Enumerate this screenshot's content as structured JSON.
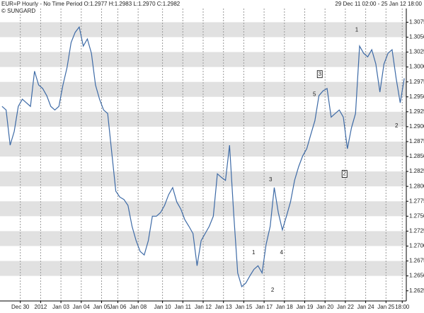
{
  "chart_data": {
    "type": "line",
    "title": "EUR=P Hourly - No Time Period O:1.2977 H:1.2983 L:1.2970 C:1.2982",
    "subtitle": "© SUNGARD",
    "date_range": "29 Dec 11 02:00 - 25 Jan 12 18:00",
    "series": [
      {
        "name": "EUR=P",
        "color": "#3d6aa6",
        "values": [
          1.2934,
          1.2928,
          1.2869,
          1.2892,
          1.2934,
          1.2946,
          1.294,
          1.2934,
          1.2993,
          1.297,
          1.2964,
          1.2952,
          1.2934,
          1.2928,
          1.2934,
          1.297,
          1.2999,
          1.3041,
          1.3058,
          1.3067,
          1.3035,
          1.3047,
          1.3023,
          1.297,
          1.2946,
          1.2928,
          1.2922,
          1.2857,
          1.2792,
          1.2782,
          1.2778,
          1.2768,
          1.2733,
          1.2709,
          1.2691,
          1.2685,
          1.2709,
          1.275,
          1.275,
          1.2756,
          1.2768,
          1.2786,
          1.2798,
          1.2774,
          1.2762,
          1.2744,
          1.2733,
          1.2721,
          1.2667,
          1.2709,
          1.2721,
          1.2733,
          1.275,
          1.2821,
          1.2815,
          1.281,
          1.2869,
          1.2756,
          1.2655,
          1.2632,
          1.2638,
          1.265,
          1.2661,
          1.2667,
          1.2655,
          1.2703,
          1.2733,
          1.2798,
          1.2756,
          1.2727,
          1.275,
          1.2774,
          1.281,
          1.2833,
          1.2851,
          1.2863,
          1.2887,
          1.291,
          1.2952,
          1.296,
          1.2964,
          1.2916,
          1.2922,
          1.2928,
          1.2916,
          1.2863,
          1.2898,
          1.2922,
          1.3035,
          1.3023,
          1.3017,
          1.3029,
          1.3005,
          1.2958,
          1.3005,
          1.3023,
          1.3029,
          1.2981,
          1.294,
          1.2981
        ]
      }
    ],
    "xlim": [
      0,
      100
    ],
    "xticks": [
      {
        "value": 5,
        "label": "Dec 30"
      },
      {
        "value": 10,
        "label": "2012"
      },
      {
        "value": 15,
        "label": "Jan 03"
      },
      {
        "value": 20,
        "label": "Jan 04"
      },
      {
        "value": 25,
        "label": "Jan 05"
      },
      {
        "value": 29,
        "label": "Jan 06"
      },
      {
        "value": 34,
        "label": "Jan 08"
      },
      {
        "value": 40,
        "label": "Jan 10"
      },
      {
        "value": 45,
        "label": "Jan 11"
      },
      {
        "value": 50,
        "label": "Jan 12"
      },
      {
        "value": 55,
        "label": "Jan 13"
      },
      {
        "value": 60,
        "label": "Jan 15"
      },
      {
        "value": 65,
        "label": "Jan 17"
      },
      {
        "value": 70,
        "label": "Jan 18"
      },
      {
        "value": 75,
        "label": "Jan 19"
      },
      {
        "value": 80,
        "label": "Jan 20"
      },
      {
        "value": 85,
        "label": "Jan 22"
      },
      {
        "value": 90,
        "label": "Jan 24"
      },
      {
        "value": 95,
        "label": "Jan 25"
      },
      {
        "value": 99,
        "label": "18:00"
      }
    ],
    "ylim": [
      1.2608,
      1.3098
    ],
    "yticks": [
      1.2625,
      {
        "value": 1.265,
        "label": "1.2650"
      },
      1.2675,
      {
        "value": 1.27,
        "label": "1.2700"
      },
      1.2725,
      {
        "value": 1.275,
        "label": "1.2750"
      },
      1.2775,
      {
        "value": 1.28,
        "label": "1.2800"
      },
      1.2825,
      {
        "value": 1.285,
        "label": "1.2850"
      },
      1.2875,
      {
        "value": 1.29,
        "label": "1.2900"
      },
      1.2925,
      {
        "value": 1.295,
        "label": "1.2950"
      },
      1.2975,
      {
        "value": 1.3,
        "label": "1.3000"
      },
      1.3025,
      {
        "value": 1.305,
        "label": "1.3050"
      },
      1.3075
    ],
    "grid": true,
    "annotations": [
      {
        "text": "1",
        "x": 62.4,
        "y": 1.2689,
        "boxed": false
      },
      {
        "text": "2",
        "x": 67.1,
        "y": 1.2626,
        "boxed": false
      },
      {
        "text": "3",
        "x": 66.6,
        "y": 1.2811,
        "boxed": false
      },
      {
        "text": "4",
        "x": 69.3,
        "y": 1.2689,
        "boxed": false
      },
      {
        "text": "5",
        "x": 77.4,
        "y": 1.2954,
        "boxed": false
      },
      {
        "text": "3",
        "x": 78.7,
        "y": 1.2988,
        "boxed": true
      },
      {
        "text": "1",
        "x": 87.8,
        "y": 1.3062,
        "boxed": false
      },
      {
        "text": "2",
        "x": 84.8,
        "y": 1.2821,
        "boxed": true
      },
      {
        "text": "2",
        "x": 97.6,
        "y": 1.2901,
        "boxed": false
      }
    ]
  }
}
